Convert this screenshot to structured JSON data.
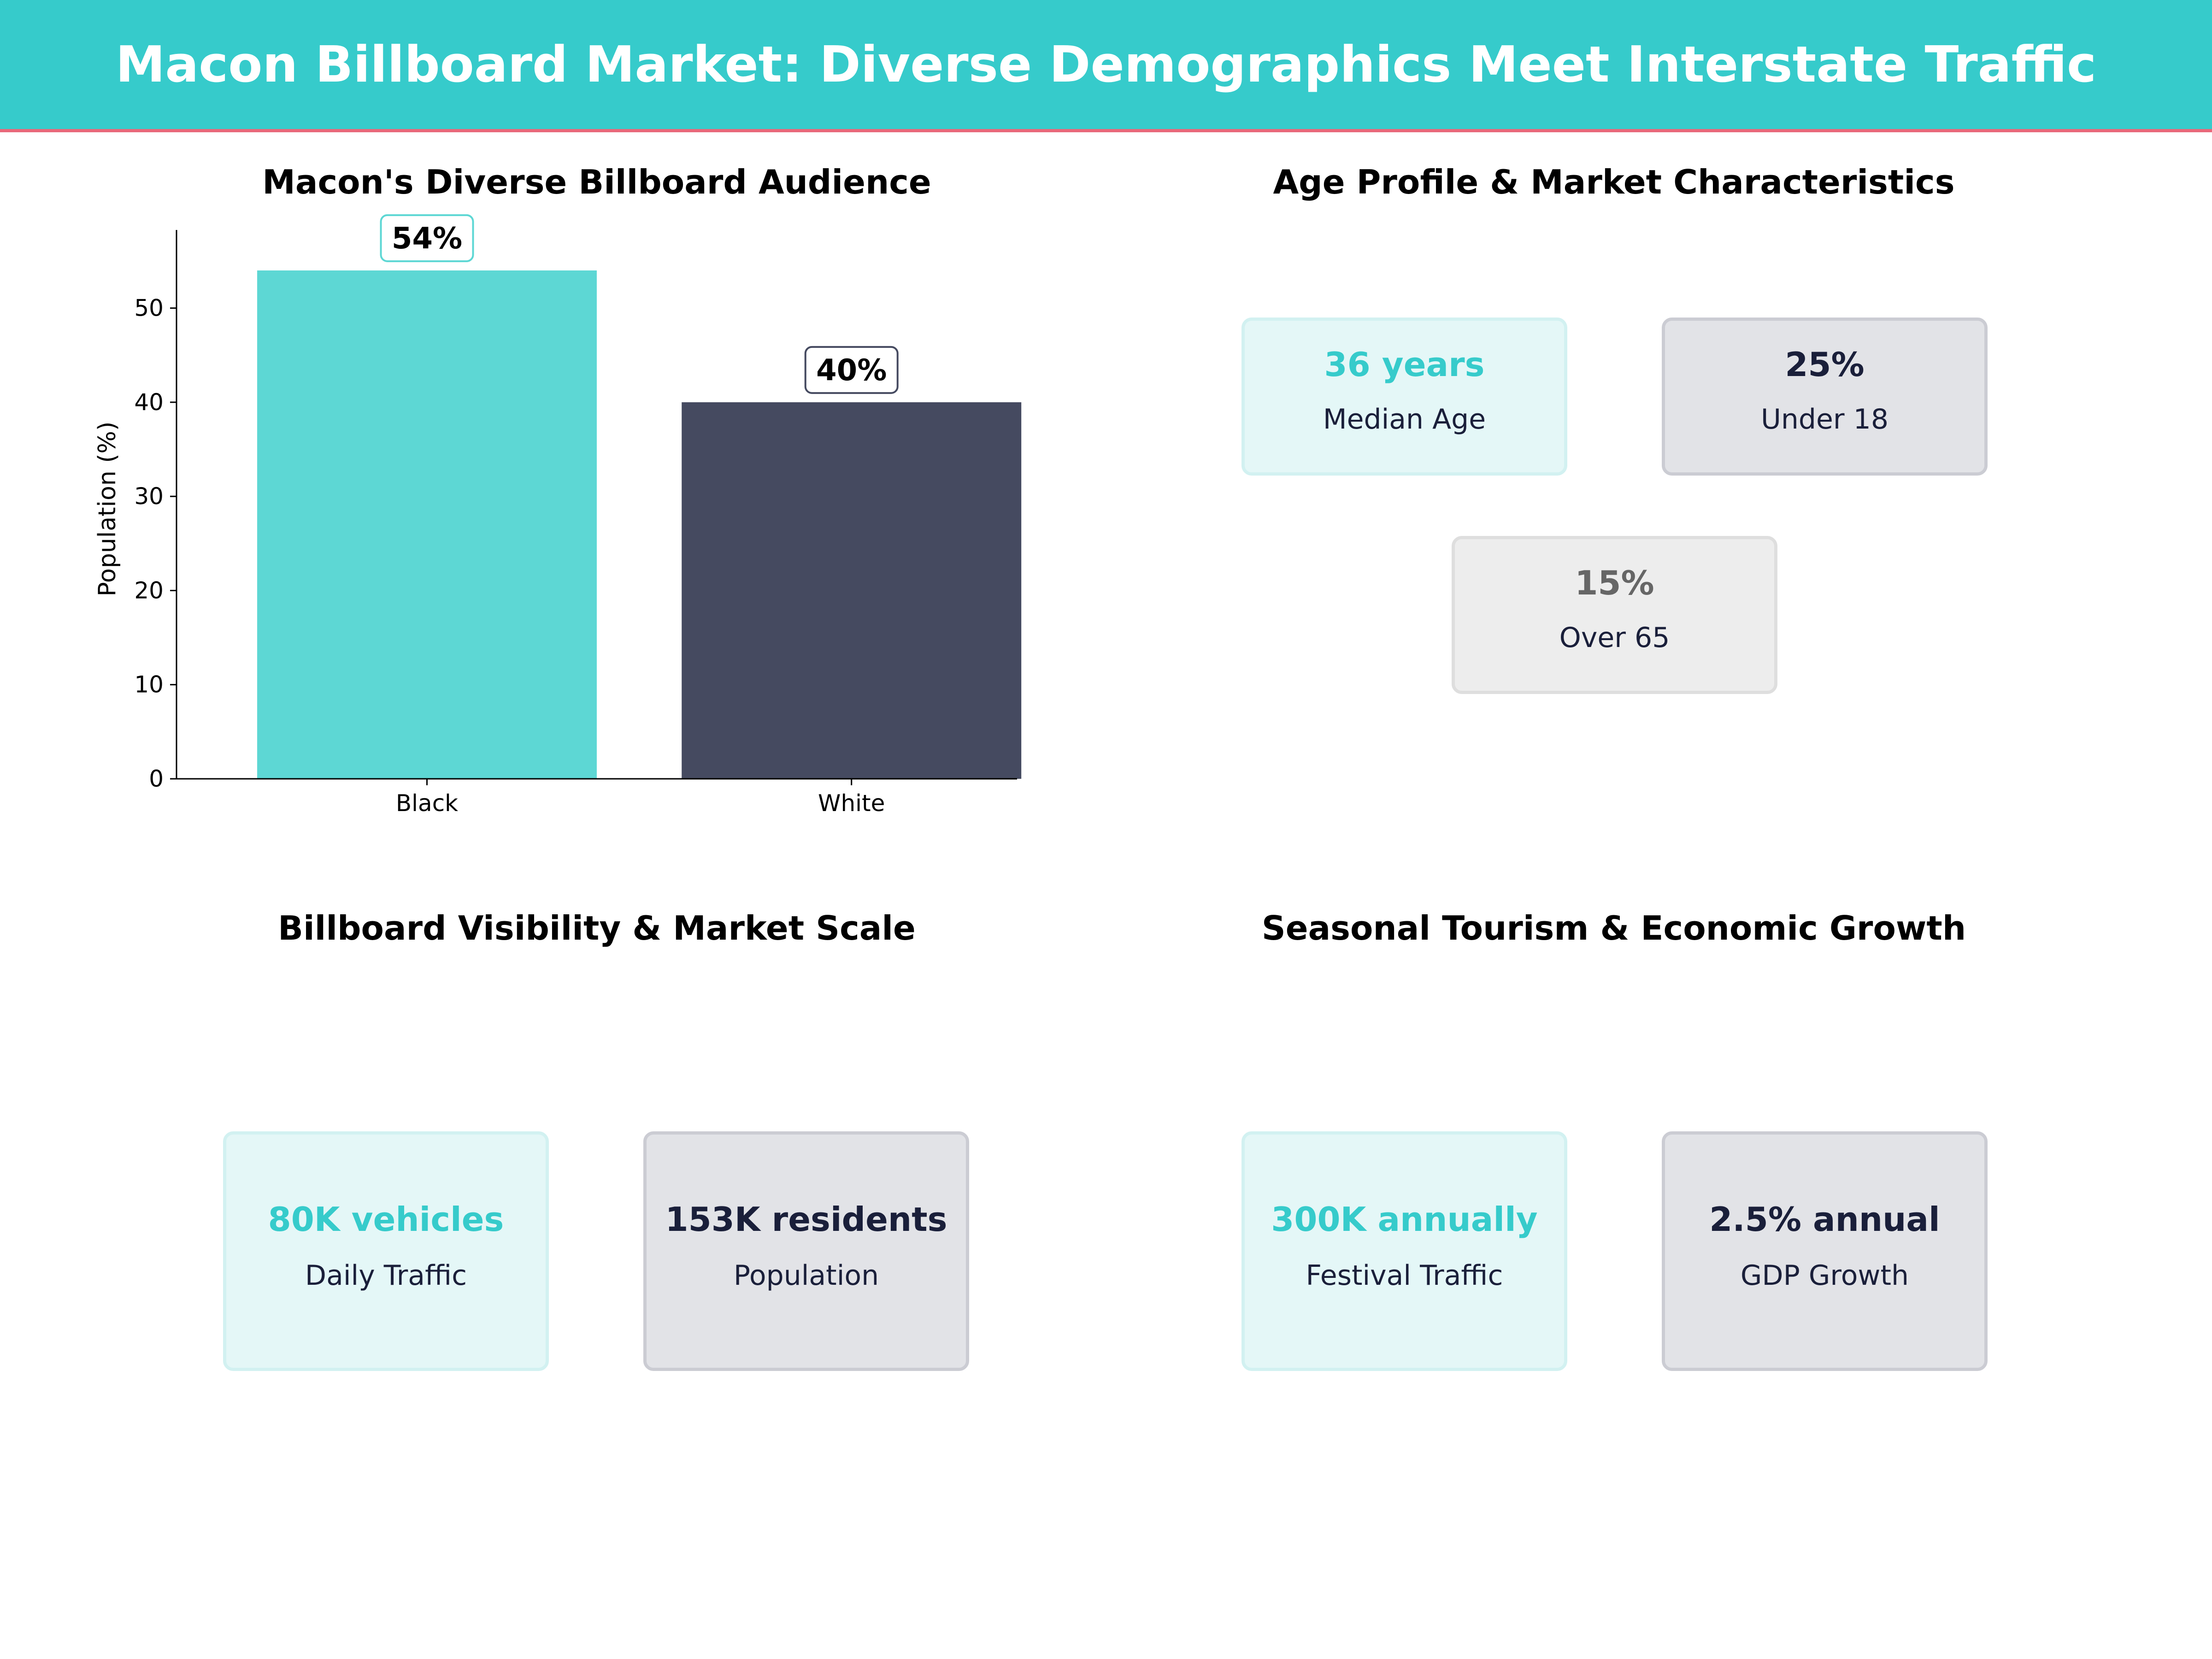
{
  "header": {
    "title": "Macon Billboard Market: Diverse Demographics Meet Interstate Traffic"
  },
  "chart_data": {
    "type": "bar",
    "title": "Macon's Diverse Billboard Audience",
    "xlabel": "",
    "ylabel": "Population (%)",
    "categories": [
      "Black",
      "White"
    ],
    "values": [
      54,
      40
    ],
    "data_labels": [
      "54%",
      "40%"
    ],
    "colors": [
      "#5dd7d4",
      "#454a60"
    ],
    "ylim": [
      0,
      58.3
    ],
    "yticks": [
      0,
      10,
      20,
      30,
      40,
      50
    ],
    "grid": false
  },
  "age_panel": {
    "title": "Age Profile & Market Characteristics",
    "cards": [
      {
        "value": "36 years",
        "label": "Median Age"
      },
      {
        "value": "25%",
        "label": "Under 18"
      },
      {
        "value": "15%",
        "label": "Over 65"
      }
    ]
  },
  "visibility_panel": {
    "title": "Billboard Visibility & Market Scale",
    "cards": [
      {
        "value": "80K vehicles",
        "label": "Daily Traffic"
      },
      {
        "value": "153K residents",
        "label": "Population"
      }
    ]
  },
  "tourism_panel": {
    "title": "Seasonal Tourism & Economic Growth",
    "cards": [
      {
        "value": "300K annually",
        "label": "Festival Traffic"
      },
      {
        "value": "2.5% annual",
        "label": "GDP Growth"
      }
    ]
  }
}
